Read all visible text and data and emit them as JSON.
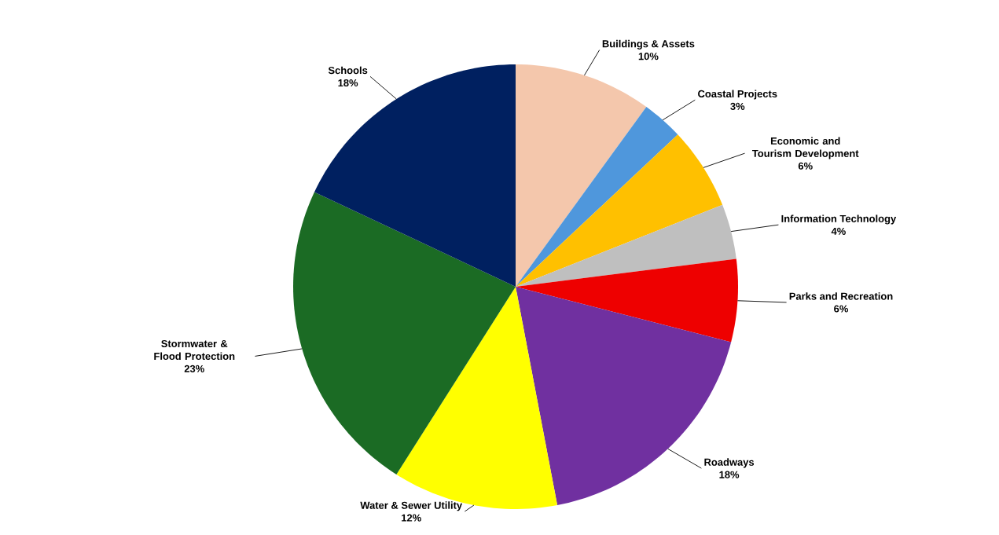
{
  "chart_data": {
    "type": "pie",
    "categories": [
      "Buildings & Assets",
      "Coastal Projects",
      "Economic and Tourism Development",
      "Information Technology",
      "Parks and Recreation",
      "Roadways",
      "Water & Sewer Utility",
      "Stormwater & Flood Protection",
      "Schools"
    ],
    "values": [
      10,
      3,
      6,
      4,
      6,
      18,
      12,
      23,
      18
    ],
    "colors": [
      "#f4c7ac",
      "#4f97dc",
      "#ffc000",
      "#bfbfbf",
      "#ee0000",
      "#7030a0",
      "#ffff00",
      "#1b6b24",
      "#002060"
    ],
    "value_labels": [
      "10%",
      "3%",
      "6%",
      "4%",
      "6%",
      "18%",
      "12%",
      "23%",
      "18%"
    ]
  }
}
